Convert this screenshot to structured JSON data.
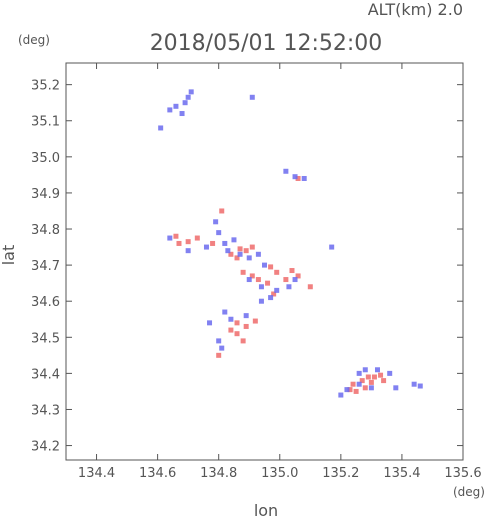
{
  "header": {
    "altitude_label": "ALT(km)  2.0",
    "timestamp": "2018/05/01 12:52:00"
  },
  "chart_data": {
    "type": "scatter",
    "title": "2018/05/01 12:52:00",
    "subtitle": "ALT(km)  2.0",
    "xlabel": "lon",
    "ylabel": "lat",
    "x_unit": "(deg)",
    "y_unit": "(deg)",
    "xlim": [
      134.3,
      135.6
    ],
    "ylim": [
      34.16,
      35.26
    ],
    "xticks": [
      134.4,
      134.6,
      134.8,
      135.0,
      135.2,
      135.4,
      135.6
    ],
    "xtick_labels": [
      "134.4",
      "134.6",
      "134.8",
      "135.0",
      "135.2",
      "135.4",
      "135.6"
    ],
    "yticks": [
      34.2,
      34.3,
      34.4,
      34.5,
      34.6,
      34.7,
      34.8,
      34.9,
      35.0,
      35.1,
      35.2
    ],
    "ytick_labels": [
      "34.2",
      "34.3",
      "34.4",
      "34.5",
      "34.6",
      "34.7",
      "34.8",
      "34.9",
      "35.0",
      "35.1",
      "35.2"
    ],
    "grid": false,
    "colors": {
      "positive": "#ee6b6b",
      "negative": "#6b6bee",
      "axis": "#555555"
    },
    "series": [
      {
        "color": "positive",
        "points": [
          [
            134.66,
            34.78
          ],
          [
            134.67,
            34.76
          ],
          [
            134.7,
            34.765
          ],
          [
            134.73,
            34.775
          ],
          [
            134.78,
            34.76
          ],
          [
            134.81,
            34.85
          ],
          [
            134.84,
            34.73
          ],
          [
            134.87,
            34.745
          ],
          [
            134.89,
            34.74
          ],
          [
            134.91,
            34.75
          ],
          [
            134.86,
            34.72
          ],
          [
            134.88,
            34.68
          ],
          [
            134.91,
            34.67
          ],
          [
            134.93,
            34.66
          ],
          [
            134.96,
            34.65
          ],
          [
            134.97,
            34.695
          ],
          [
            134.99,
            34.68
          ],
          [
            135.02,
            34.66
          ],
          [
            135.04,
            34.685
          ],
          [
            135.06,
            34.67
          ],
          [
            135.1,
            34.64
          ],
          [
            134.86,
            34.54
          ],
          [
            134.89,
            34.53
          ],
          [
            134.86,
            34.51
          ],
          [
            134.88,
            34.49
          ],
          [
            134.84,
            34.52
          ],
          [
            134.8,
            34.45
          ],
          [
            134.92,
            34.545
          ],
          [
            135.24,
            34.37
          ],
          [
            135.27,
            34.38
          ],
          [
            135.29,
            34.39
          ],
          [
            135.31,
            34.39
          ],
          [
            135.33,
            34.395
          ],
          [
            135.25,
            34.35
          ],
          [
            135.28,
            34.36
          ],
          [
            135.34,
            34.38
          ],
          [
            135.3,
            34.375
          ],
          [
            135.06,
            34.94
          ],
          [
            134.98,
            34.62
          ],
          [
            135.23,
            34.355
          ]
        ]
      },
      {
        "color": "negative",
        "points": [
          [
            134.61,
            35.08
          ],
          [
            134.64,
            35.13
          ],
          [
            134.66,
            35.14
          ],
          [
            134.68,
            35.12
          ],
          [
            134.7,
            35.165
          ],
          [
            134.71,
            35.18
          ],
          [
            134.69,
            35.15
          ],
          [
            134.91,
            35.165
          ],
          [
            135.02,
            34.96
          ],
          [
            135.05,
            34.945
          ],
          [
            135.08,
            34.94
          ],
          [
            134.64,
            34.775
          ],
          [
            134.7,
            34.74
          ],
          [
            134.76,
            34.75
          ],
          [
            134.79,
            34.82
          ],
          [
            134.8,
            34.79
          ],
          [
            134.82,
            34.76
          ],
          [
            134.85,
            34.77
          ],
          [
            134.83,
            34.74
          ],
          [
            134.87,
            34.73
          ],
          [
            134.9,
            34.72
          ],
          [
            134.93,
            34.73
          ],
          [
            134.95,
            34.7
          ],
          [
            134.9,
            34.66
          ],
          [
            134.94,
            34.64
          ],
          [
            134.99,
            34.63
          ],
          [
            135.03,
            34.64
          ],
          [
            135.05,
            34.66
          ],
          [
            134.94,
            34.6
          ],
          [
            134.97,
            34.61
          ],
          [
            135.17,
            34.75
          ],
          [
            134.77,
            34.54
          ],
          [
            134.82,
            34.57
          ],
          [
            134.84,
            34.55
          ],
          [
            134.8,
            34.49
          ],
          [
            134.89,
            34.56
          ],
          [
            135.2,
            34.34
          ],
          [
            135.22,
            34.355
          ],
          [
            135.26,
            34.4
          ],
          [
            135.28,
            34.41
          ],
          [
            135.32,
            34.41
          ],
          [
            135.36,
            34.4
          ],
          [
            135.3,
            34.36
          ],
          [
            135.38,
            34.36
          ],
          [
            135.44,
            34.37
          ],
          [
            135.46,
            34.365
          ],
          [
            135.26,
            34.37
          ],
          [
            134.81,
            34.47
          ]
        ]
      }
    ]
  }
}
